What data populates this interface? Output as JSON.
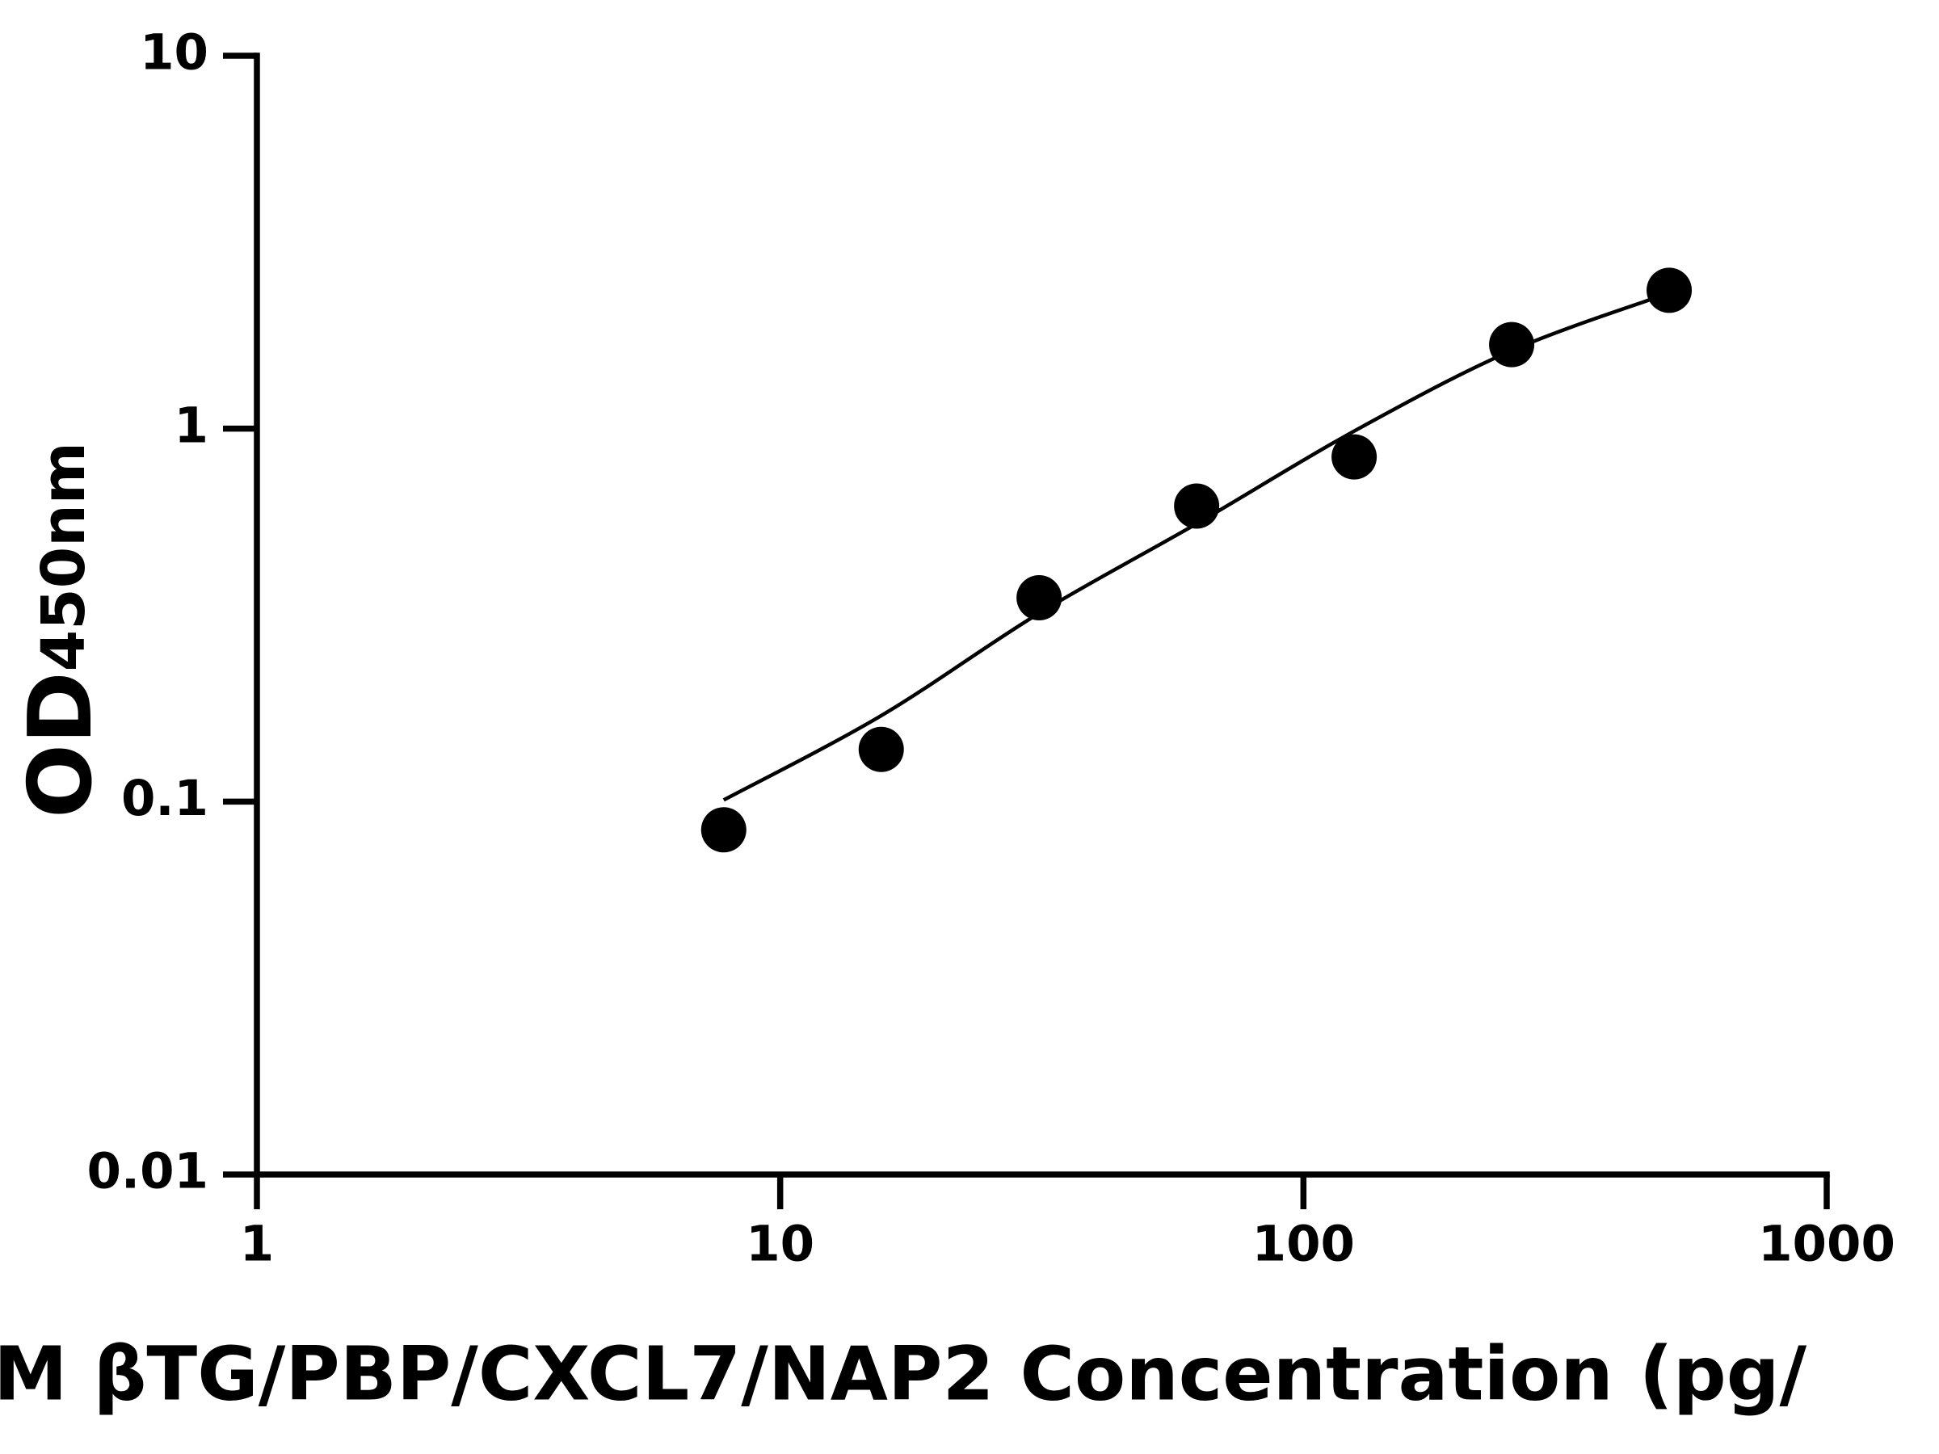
{
  "chart_data": {
    "type": "scatter",
    "xlabel": "M βTG/PBP/CXCL7/NAP2 Concentration (pg/",
    "ylabel": "OD",
    "ylabel_subscript": "450nm",
    "xscale": "log",
    "yscale": "log",
    "xlim": [
      1,
      1000
    ],
    "ylim": [
      0.01,
      10
    ],
    "xticks": [
      1,
      10,
      100,
      1000
    ],
    "yticks": [
      0.01,
      0.1,
      1,
      10
    ],
    "series": [
      {
        "type": "scatter",
        "color": "#000000",
        "x": [
          7.8,
          15.6,
          31.25,
          62.5,
          125,
          250,
          500
        ],
        "values": [
          0.084,
          0.138,
          0.352,
          0.62,
          0.84,
          1.68,
          2.35
        ]
      },
      {
        "type": "line",
        "color": "#000000",
        "x": [
          7.8,
          15.6,
          31.25,
          62.5,
          125,
          250,
          500
        ],
        "values": [
          0.101,
          0.17,
          0.32,
          0.556,
          0.985,
          1.62,
          2.31
        ]
      }
    ]
  }
}
